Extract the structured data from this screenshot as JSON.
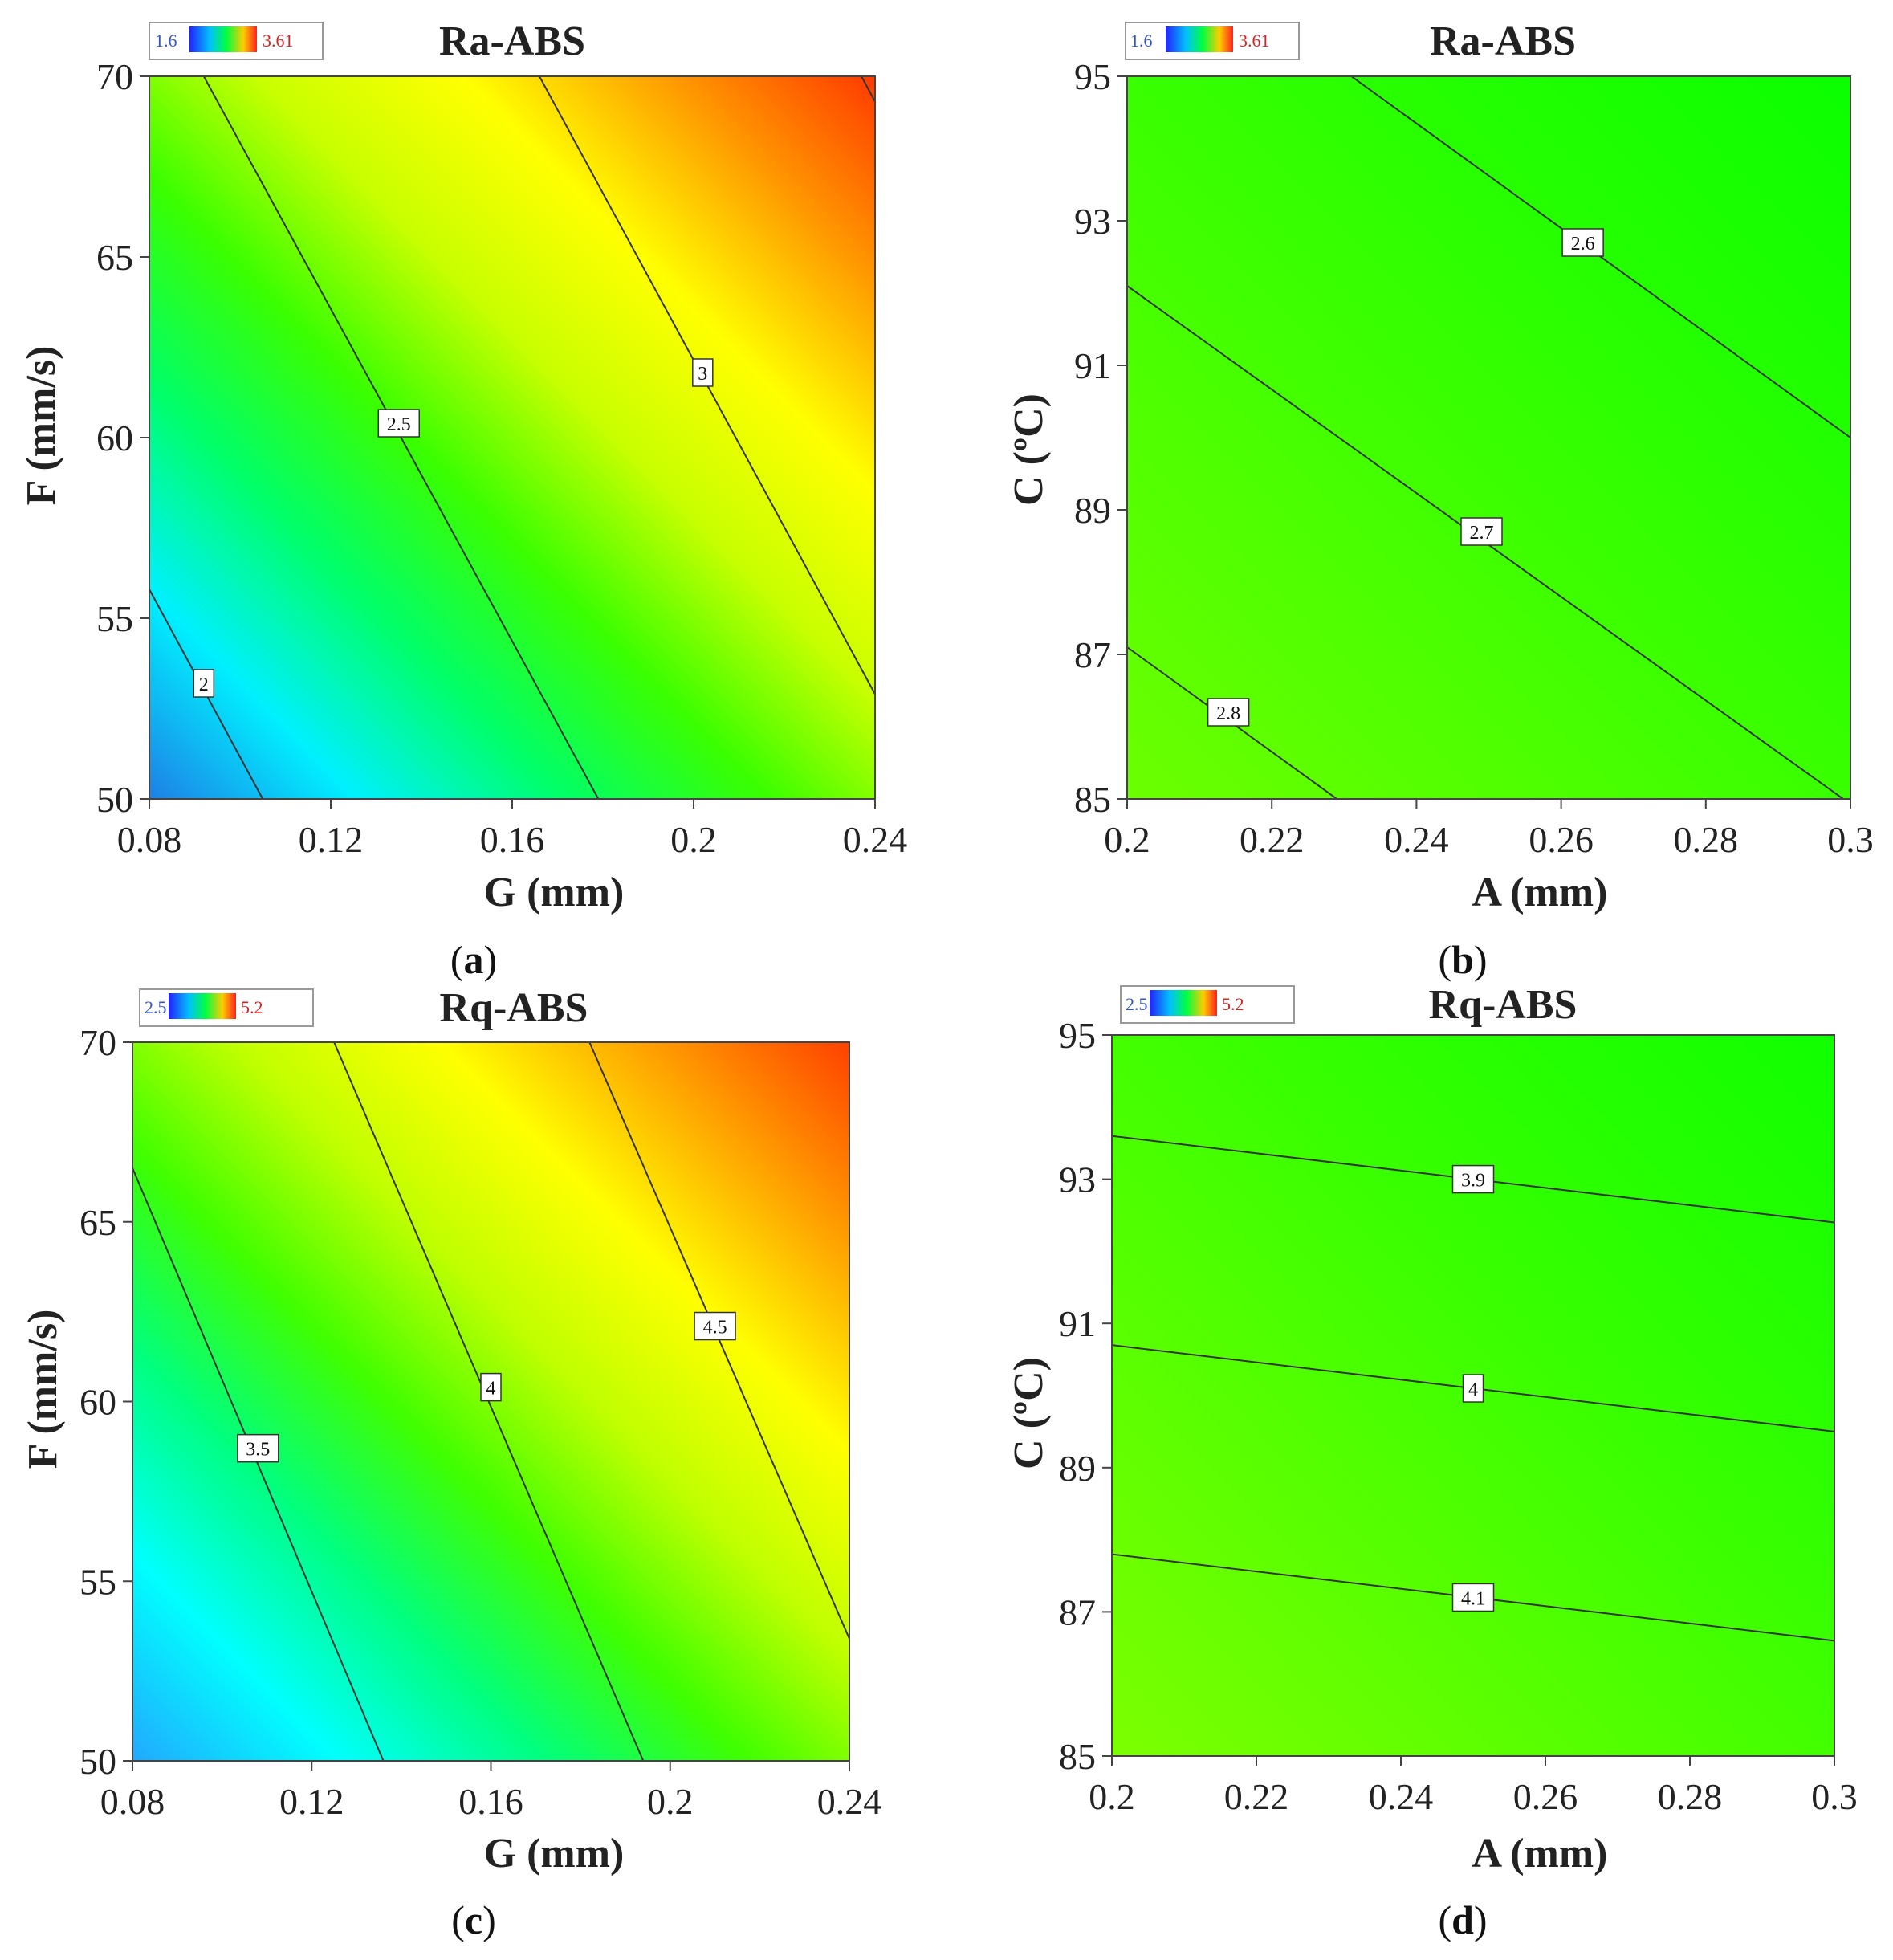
{
  "chart_data": [
    {
      "type": "heatmap",
      "panel_label": "a",
      "title": "Ra-ABS",
      "xlabel": "G (mm)",
      "ylabel": "F (mm/s)",
      "xlim": [
        0.08,
        0.24
      ],
      "ylim": [
        50,
        70
      ],
      "xticks": [
        "0.08",
        "0.12",
        "0.16",
        "0.2",
        "0.24"
      ],
      "yticks": [
        "50",
        "55",
        "60",
        "65",
        "70"
      ],
      "colorbar": {
        "min": "1.6",
        "max": "3.61"
      },
      "contours": [
        {
          "label": "2",
          "x1": 0.08,
          "y1": 55.8,
          "x2": 0.105,
          "y2": 50,
          "lx": 0.092,
          "ly": 53.2
        },
        {
          "label": "2.5",
          "x1": 0.092,
          "y1": 70,
          "x2": 0.179,
          "y2": 50,
          "lx": 0.135,
          "ly": 60.4
        },
        {
          "label": "3",
          "x1": 0.166,
          "y1": 70,
          "x2": 0.24,
          "y2": 52.9,
          "lx": 0.202,
          "ly": 61.8
        },
        {
          "label": "",
          "x1": 0.237,
          "y1": 70,
          "x2": 0.24,
          "y2": 69.3,
          "lx": null,
          "ly": null
        }
      ]
    },
    {
      "type": "heatmap",
      "panel_label": "b",
      "title": "Ra-ABS",
      "xlabel": "A (mm)",
      "ylabel": "C (ºC)",
      "xlim": [
        0.2,
        0.3
      ],
      "ylim": [
        85,
        95
      ],
      "xticks": [
        "0.2",
        "0.22",
        "0.24",
        "0.26",
        "0.28",
        "0.3"
      ],
      "yticks": [
        "85",
        "87",
        "89",
        "91",
        "93",
        "95"
      ],
      "colorbar": {
        "min": "1.6",
        "max": "3.61"
      },
      "contours": [
        {
          "label": "2.6",
          "x1": 0.231,
          "y1": 95,
          "x2": 0.3,
          "y2": 90.0,
          "lx": 0.263,
          "ly": 92.7
        },
        {
          "label": "2.7",
          "x1": 0.2,
          "y1": 92.1,
          "x2": 0.299,
          "y2": 85,
          "lx": 0.249,
          "ly": 88.7
        },
        {
          "label": "2.8",
          "x1": 0.2,
          "y1": 87.1,
          "x2": 0.229,
          "y2": 85,
          "lx": 0.214,
          "ly": 86.2
        }
      ]
    },
    {
      "type": "heatmap",
      "panel_label": "c",
      "title": "Rq-ABS",
      "xlabel": "G (mm)",
      "ylabel": "F (mm/s)",
      "xlim": [
        0.08,
        0.24
      ],
      "ylim": [
        50,
        70
      ],
      "xticks": [
        "0.08",
        "0.12",
        "0.16",
        "0.2",
        "0.24"
      ],
      "yticks": [
        "50",
        "55",
        "60",
        "65",
        "70"
      ],
      "colorbar": {
        "min": "2.5",
        "max": "5.2"
      },
      "contours": [
        {
          "label": "3.5",
          "x1": 0.08,
          "y1": 66.5,
          "x2": 0.136,
          "y2": 50,
          "lx": 0.108,
          "ly": 58.7
        },
        {
          "label": "4",
          "x1": 0.125,
          "y1": 70,
          "x2": 0.194,
          "y2": 50,
          "lx": 0.16,
          "ly": 60.4
        },
        {
          "label": "4.5",
          "x1": 0.182,
          "y1": 70,
          "x2": 0.24,
          "y2": 53.4,
          "lx": 0.21,
          "ly": 62.1
        }
      ]
    },
    {
      "type": "heatmap",
      "panel_label": "d",
      "title": "Rq-ABS",
      "xlabel": "A (mm)",
      "ylabel": "C (ºC)",
      "xlim": [
        0.2,
        0.3
      ],
      "ylim": [
        85,
        95
      ],
      "xticks": [
        "0.2",
        "0.22",
        "0.24",
        "0.26",
        "0.28",
        "0.3"
      ],
      "yticks": [
        "85",
        "87",
        "89",
        "91",
        "93",
        "95"
      ],
      "colorbar": {
        "min": "2.5",
        "max": "5.2"
      },
      "contours": [
        {
          "label": "3.9",
          "x1": 0.2,
          "y1": 93.6,
          "x2": 0.3,
          "y2": 92.4,
          "lx": 0.25,
          "ly": 93.0
        },
        {
          "label": "4",
          "x1": 0.2,
          "y1": 90.7,
          "x2": 0.3,
          "y2": 89.5,
          "lx": 0.25,
          "ly": 90.1
        },
        {
          "label": "4.1",
          "x1": 0.2,
          "y1": 87.8,
          "x2": 0.3,
          "y2": 86.6,
          "lx": 0.25,
          "ly": 87.2
        }
      ]
    }
  ],
  "colors": {
    "a": [
      "#1f7fe6",
      "#00f0ff",
      "#00ff6a",
      "#3aff00",
      "#c8ff00",
      "#ffff00",
      "#ff9a00",
      "#ff3a00"
    ],
    "b": [
      "#6cff00",
      "#4aff00",
      "#28ff00",
      "#0aff00"
    ],
    "c": [
      "#22a8ff",
      "#00ffff",
      "#00ff80",
      "#40ff00",
      "#c0ff00",
      "#ffff00",
      "#ffa000",
      "#ff4000"
    ],
    "d": [
      "#7cff00",
      "#56ff00",
      "#30ff00",
      "#10ff00"
    ]
  }
}
